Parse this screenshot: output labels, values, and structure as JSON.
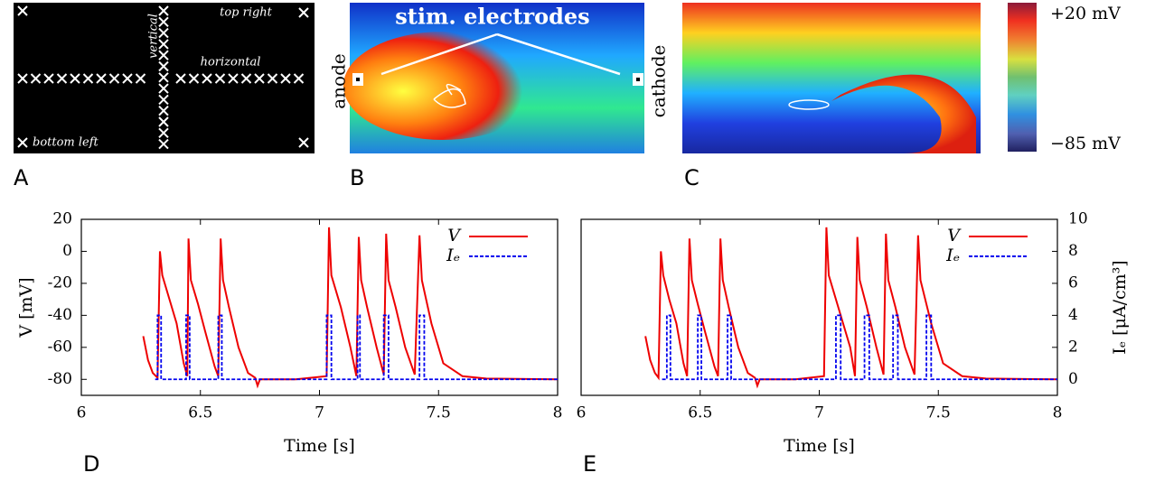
{
  "panels": {
    "A": {
      "letter": "A",
      "vertical": "vertical",
      "top_right": "top right",
      "horizontal": "horizontal",
      "bottom_left": "bottom left"
    },
    "B": {
      "letter": "B",
      "title": "stim. electrodes",
      "anode": "anode",
      "cathode": "cathode"
    },
    "C": {
      "letter": "C"
    }
  },
  "colorbar": {
    "max_label": "+20 mV",
    "min_label": "−85 mV"
  },
  "chart_data": [
    {
      "type": "line",
      "panel_label": "D",
      "xlabel": "Time [s]",
      "ylabel": "V [mV]",
      "xlim": [
        6,
        8
      ],
      "xticks": [
        6,
        6.5,
        7,
        7.5,
        8
      ],
      "ylim": [
        -90,
        20
      ],
      "yticks": [
        20,
        0,
        -20,
        -40,
        -60,
        -80
      ],
      "y2lim": [
        -1,
        10
      ],
      "legend": "upper right",
      "series": [
        {
          "name": "V",
          "color": "#ee0000",
          "linestyle": "solid",
          "x": [
            6.26,
            6.28,
            6.3,
            6.32,
            6.33,
            6.34,
            6.37,
            6.4,
            6.43,
            6.445,
            6.45,
            6.46,
            6.49,
            6.52,
            6.56,
            6.575,
            6.585,
            6.595,
            6.62,
            6.66,
            6.7,
            6.73,
            6.74,
            6.75,
            6.9,
            7.03,
            7.04,
            7.05,
            7.09,
            7.13,
            7.155,
            7.165,
            7.175,
            7.2,
            7.24,
            7.27,
            7.28,
            7.29,
            7.32,
            7.36,
            7.4,
            7.42,
            7.43,
            7.47,
            7.52,
            7.6,
            7.7,
            8.0
          ],
          "values": [
            -53,
            -68,
            -76,
            -79,
            0,
            -15,
            -30,
            -45,
            -70,
            -78,
            8,
            -18,
            -33,
            -50,
            -72,
            -78,
            8,
            -18,
            -35,
            -60,
            -76,
            -79,
            -84,
            -80,
            -80,
            -78,
            15,
            -15,
            -35,
            -60,
            -78,
            9,
            -18,
            -35,
            -60,
            -77,
            11,
            -18,
            -35,
            -60,
            -77,
            10,
            -18,
            -45,
            -70,
            -78,
            -79.5,
            -80
          ]
        },
        {
          "name": "Iₑ",
          "color": "#0000ee",
          "linestyle": "dashed",
          "axis": "y2",
          "x": [
            6.31,
            6.32,
            6.32,
            6.335,
            6.335,
            6.44,
            6.44,
            6.455,
            6.455,
            6.575,
            6.575,
            6.59,
            6.59,
            7.03,
            7.03,
            7.05,
            7.05,
            7.16,
            7.16,
            7.17,
            7.17,
            7.27,
            7.27,
            7.29,
            7.29,
            7.42,
            7.42,
            7.44,
            7.44,
            8.0
          ],
          "values": [
            0,
            0,
            4,
            4,
            0,
            0,
            4,
            4,
            0,
            0,
            4,
            4,
            0,
            0,
            4,
            4,
            0,
            0,
            4,
            4,
            0,
            0,
            4,
            4,
            0,
            0,
            4,
            4,
            0,
            0
          ]
        }
      ]
    },
    {
      "type": "line",
      "panel_label": "E",
      "xlabel": "Time [s]",
      "y2label": "Iₑ [μA/cm³]",
      "xlim": [
        6,
        8
      ],
      "xticks": [
        6,
        6.5,
        7,
        7.5,
        8
      ],
      "ylim": [
        -90,
        20
      ],
      "y2lim": [
        -1,
        10
      ],
      "y2ticks": [
        10,
        8,
        6,
        4,
        2,
        0
      ],
      "legend": "upper right",
      "series": [
        {
          "name": "V",
          "color": "#ee0000",
          "linestyle": "solid",
          "x": [
            6.27,
            6.29,
            6.31,
            6.325,
            6.335,
            6.345,
            6.37,
            6.4,
            6.43,
            6.445,
            6.455,
            6.465,
            6.49,
            6.52,
            6.56,
            6.575,
            6.585,
            6.595,
            6.62,
            6.66,
            6.7,
            6.73,
            6.74,
            6.75,
            6.9,
            7.02,
            7.03,
            7.04,
            7.08,
            7.13,
            7.15,
            7.16,
            7.17,
            7.2,
            7.24,
            7.27,
            7.28,
            7.29,
            7.32,
            7.36,
            7.4,
            7.415,
            7.425,
            7.47,
            7.52,
            7.6,
            7.7,
            8.0
          ],
          "values": [
            -53,
            -68,
            -76,
            -79,
            0,
            -15,
            -30,
            -45,
            -70,
            -78,
            8,
            -18,
            -33,
            -50,
            -72,
            -78,
            8,
            -18,
            -35,
            -60,
            -76,
            -79,
            -84,
            -80,
            -80,
            -78,
            15,
            -15,
            -35,
            -60,
            -78,
            9,
            -18,
            -35,
            -60,
            -77,
            11,
            -18,
            -35,
            -60,
            -77,
            10,
            -18,
            -45,
            -70,
            -78,
            -79.5,
            -80
          ]
        },
        {
          "name": "Iₑ",
          "color": "#0000ee",
          "linestyle": "dashed",
          "axis": "y2",
          "x": [
            6.34,
            6.36,
            6.36,
            6.375,
            6.375,
            6.49,
            6.49,
            6.505,
            6.505,
            6.615,
            6.615,
            6.63,
            6.63,
            7.07,
            7.07,
            7.09,
            7.09,
            7.19,
            7.19,
            7.21,
            7.21,
            7.31,
            7.31,
            7.33,
            7.33,
            7.45,
            7.45,
            7.47,
            7.47,
            8.0
          ],
          "values": [
            0,
            0,
            4,
            4,
            0,
            0,
            4,
            4,
            0,
            0,
            4,
            4,
            0,
            0,
            4,
            4,
            0,
            0,
            4,
            4,
            0,
            0,
            4,
            4,
            0,
            0,
            4,
            4,
            0,
            0
          ]
        }
      ]
    }
  ]
}
